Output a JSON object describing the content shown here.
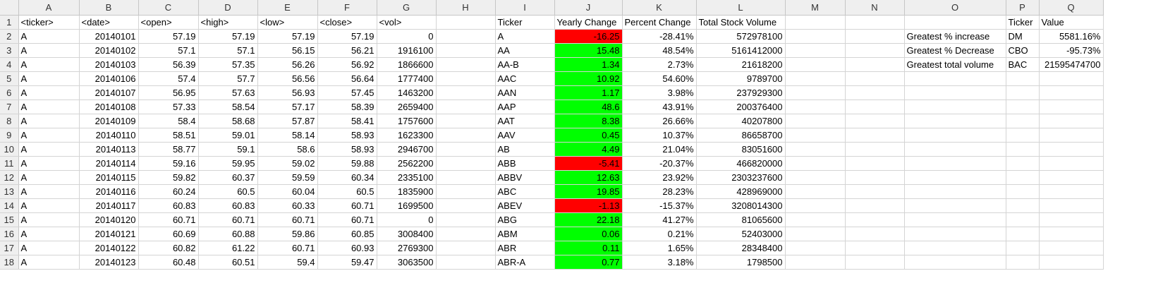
{
  "columns": [
    "A",
    "B",
    "C",
    "D",
    "E",
    "F",
    "G",
    "H",
    "I",
    "J",
    "K",
    "L",
    "M",
    "N",
    "O",
    "P",
    "Q"
  ],
  "colors": {
    "positive": "#00ff00",
    "negative": "#ff0000",
    "header_bg": "#efefef"
  },
  "rows": [
    {
      "n": "1",
      "A": "<ticker>",
      "B": "<date>",
      "C": "<open>",
      "D": "<high>",
      "E": "<low>",
      "F": "<close>",
      "G": "<vol>",
      "I": "Ticker",
      "J": "Yearly Change",
      "K": "Percent Change",
      "L": "Total Stock Volume",
      "O": "",
      "P": "Ticker",
      "Q": "Value"
    },
    {
      "n": "2",
      "A": "A",
      "B": "20140101",
      "C": "57.19",
      "D": "57.19",
      "E": "57.19",
      "F": "57.19",
      "G": "0",
      "I": "A",
      "J": "-16.25",
      "K": "-28.41%",
      "L": "572978100",
      "O": "Greatest % increase",
      "P": "DM",
      "Q": "5581.16%"
    },
    {
      "n": "3",
      "A": "A",
      "B": "20140102",
      "C": "57.1",
      "D": "57.1",
      "E": "56.15",
      "F": "56.21",
      "G": "1916100",
      "I": "AA",
      "J": "15.48",
      "K": "48.54%",
      "L": "5161412000",
      "O": "Greatest % Decrease",
      "P": "CBO",
      "Q": "-95.73%"
    },
    {
      "n": "4",
      "A": "A",
      "B": "20140103",
      "C": "56.39",
      "D": "57.35",
      "E": "56.26",
      "F": "56.92",
      "G": "1866600",
      "I": "AA-B",
      "J": "1.34",
      "K": "2.73%",
      "L": "21618200",
      "O": "Greatest total volume",
      "P": "BAC",
      "Q": "21595474700"
    },
    {
      "n": "5",
      "A": "A",
      "B": "20140106",
      "C": "57.4",
      "D": "57.7",
      "E": "56.56",
      "F": "56.64",
      "G": "1777400",
      "I": "AAC",
      "J": "10.92",
      "K": "54.60%",
      "L": "9789700"
    },
    {
      "n": "6",
      "A": "A",
      "B": "20140107",
      "C": "56.95",
      "D": "57.63",
      "E": "56.93",
      "F": "57.45",
      "G": "1463200",
      "I": "AAN",
      "J": "1.17",
      "K": "3.98%",
      "L": "237929300"
    },
    {
      "n": "7",
      "A": "A",
      "B": "20140108",
      "C": "57.33",
      "D": "58.54",
      "E": "57.17",
      "F": "58.39",
      "G": "2659400",
      "I": "AAP",
      "J": "48.6",
      "K": "43.91%",
      "L": "200376400"
    },
    {
      "n": "8",
      "A": "A",
      "B": "20140109",
      "C": "58.4",
      "D": "58.68",
      "E": "57.87",
      "F": "58.41",
      "G": "1757600",
      "I": "AAT",
      "J": "8.38",
      "K": "26.66%",
      "L": "40207800"
    },
    {
      "n": "9",
      "A": "A",
      "B": "20140110",
      "C": "58.51",
      "D": "59.01",
      "E": "58.14",
      "F": "58.93",
      "G": "1623300",
      "I": "AAV",
      "J": "0.45",
      "K": "10.37%",
      "L": "86658700"
    },
    {
      "n": "10",
      "A": "A",
      "B": "20140113",
      "C": "58.77",
      "D": "59.1",
      "E": "58.6",
      "F": "58.93",
      "G": "2946700",
      "I": "AB",
      "J": "4.49",
      "K": "21.04%",
      "L": "83051600"
    },
    {
      "n": "11",
      "A": "A",
      "B": "20140114",
      "C": "59.16",
      "D": "59.95",
      "E": "59.02",
      "F": "59.88",
      "G": "2562200",
      "I": "ABB",
      "J": "-5.41",
      "K": "-20.37%",
      "L": "466820000"
    },
    {
      "n": "12",
      "A": "A",
      "B": "20140115",
      "C": "59.82",
      "D": "60.37",
      "E": "59.59",
      "F": "60.34",
      "G": "2335100",
      "I": "ABBV",
      "J": "12.63",
      "K": "23.92%",
      "L": "2303237600"
    },
    {
      "n": "13",
      "A": "A",
      "B": "20140116",
      "C": "60.24",
      "D": "60.5",
      "E": "60.04",
      "F": "60.5",
      "G": "1835900",
      "I": "ABC",
      "J": "19.85",
      "K": "28.23%",
      "L": "428969000"
    },
    {
      "n": "14",
      "A": "A",
      "B": "20140117",
      "C": "60.83",
      "D": "60.83",
      "E": "60.33",
      "F": "60.71",
      "G": "1699500",
      "I": "ABEV",
      "J": "-1.13",
      "K": "-15.37%",
      "L": "3208014300"
    },
    {
      "n": "15",
      "A": "A",
      "B": "20140120",
      "C": "60.71",
      "D": "60.71",
      "E": "60.71",
      "F": "60.71",
      "G": "0",
      "I": "ABG",
      "J": "22.18",
      "K": "41.27%",
      "L": "81065600"
    },
    {
      "n": "16",
      "A": "A",
      "B": "20140121",
      "C": "60.69",
      "D": "60.88",
      "E": "59.86",
      "F": "60.85",
      "G": "3008400",
      "I": "ABM",
      "J": "0.06",
      "K": "0.21%",
      "L": "52403000"
    },
    {
      "n": "17",
      "A": "A",
      "B": "20140122",
      "C": "60.82",
      "D": "61.22",
      "E": "60.71",
      "F": "60.93",
      "G": "2769300",
      "I": "ABR",
      "J": "0.11",
      "K": "1.65%",
      "L": "28348400"
    },
    {
      "n": "18",
      "A": "A",
      "B": "20140123",
      "C": "60.48",
      "D": "60.51",
      "E": "59.4",
      "F": "59.47",
      "G": "3063500",
      "I": "ABR-A",
      "J": "0.77",
      "K": "3.18%",
      "L": "1798500"
    }
  ]
}
